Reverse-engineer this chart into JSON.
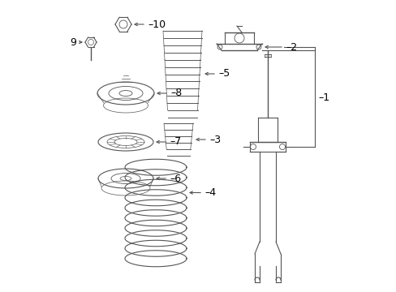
{
  "bg_color": "#ffffff",
  "line_color": "#555555",
  "label_color": "#000000",
  "fig_w": 4.89,
  "fig_h": 3.6,
  "dpi": 100
}
